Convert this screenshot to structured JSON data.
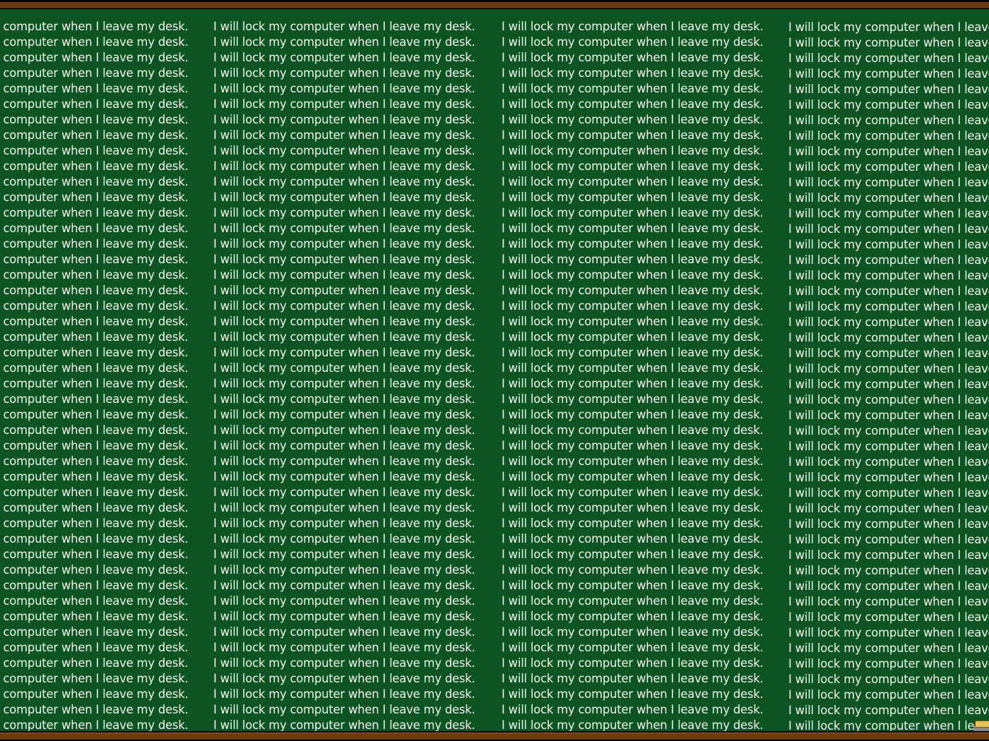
{
  "chalkboard": {
    "sentence": "I will lock my computer when I leave my desk.",
    "colors": {
      "board": "#0c5422",
      "chalk": "#f4f4ee",
      "frame": "#6b3a10"
    }
  }
}
